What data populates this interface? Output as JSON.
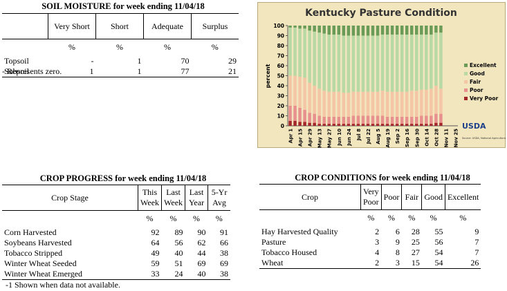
{
  "soil_moisture": {
    "title": "SOIL MOISTURE for week ending 11/04/18",
    "columns": [
      "Very Short",
      "Short",
      "Adequate",
      "Surplus"
    ],
    "units": [
      "%",
      "%",
      "%",
      "%"
    ],
    "rows": [
      {
        "label": "Topsoil",
        "values": [
          "-",
          1,
          70,
          29
        ]
      },
      {
        "label": "Subsoil",
        "values": [
          1,
          1,
          77,
          21
        ]
      }
    ],
    "note": "- Represents zero."
  },
  "crop_progress": {
    "title": "CROP PROGRESS for week ending 11/04/18",
    "stub_header": "Crop Stage",
    "columns": [
      "This Week",
      "Last Week",
      "Last Year",
      "5-Yr Avg"
    ],
    "units": [
      "%",
      "%",
      "%",
      "%"
    ],
    "rows": [
      {
        "label": "Corn Harvested",
        "values": [
          92,
          89,
          90,
          91
        ]
      },
      {
        "label": "Soybeans Harvested",
        "values": [
          64,
          56,
          62,
          66
        ]
      },
      {
        "label": "Tobacco Stripped",
        "values": [
          49,
          40,
          44,
          38
        ]
      },
      {
        "label": "Winter Wheat Seeded",
        "values": [
          59,
          51,
          69,
          69
        ]
      },
      {
        "label": "Winter Wheat Emerged",
        "values": [
          33,
          24,
          40,
          38
        ]
      }
    ],
    "note": "-1 Shown when data not available."
  },
  "crop_conditions": {
    "title": "CROP CONDITIONS for week ending 11/04/18",
    "stub_header": "Crop",
    "columns": [
      "Very Poor",
      "Poor",
      "Fair",
      "Good",
      "Excellent"
    ],
    "units": [
      "%",
      "%",
      "%",
      "%",
      "%"
    ],
    "rows": [
      {
        "label": "Hay Harvested Quality",
        "values": [
          2,
          6,
          28,
          55,
          9
        ]
      },
      {
        "label": "Pasture",
        "values": [
          3,
          9,
          25,
          56,
          7
        ]
      },
      {
        "label": "Tobacco Housed",
        "values": [
          4,
          8,
          27,
          54,
          7
        ]
      },
      {
        "label": "Wheat",
        "values": [
          2,
          3,
          15,
          54,
          26
        ]
      }
    ]
  },
  "chart_data": {
    "type": "stacked_bar",
    "title": "Kentucky Pasture Condition",
    "y_label": "percent",
    "logo": "USDA",
    "source": "Source: USDA, National Agricultural Statistics Service",
    "categories": [
      "Apr 1",
      null,
      "Apr 15",
      null,
      "Apr 29",
      null,
      "May 13",
      null,
      "May 27",
      null,
      "Jun 10",
      null,
      "Jun 24",
      null,
      "Jul 8",
      null,
      "Jul 22",
      null,
      "Aug 5",
      null,
      "Aug 19",
      null,
      "Sep 2",
      null,
      "Sep 16",
      null,
      "Sep 30",
      null,
      "Oct 14",
      null,
      "Oct 28",
      null,
      "Nov 11",
      null,
      "Nov 25"
    ],
    "series": [
      {
        "name": "Very Poor",
        "color": "#a3262a",
        "values": [
          5,
          5,
          4,
          4,
          3,
          3,
          2,
          2,
          2,
          2,
          2,
          2,
          2,
          2,
          2,
          2,
          2,
          2,
          2,
          2,
          2,
          2,
          2,
          2,
          2,
          2,
          2,
          2,
          2,
          2,
          3,
          3,
          null,
          null,
          null
        ]
      },
      {
        "name": "Poor",
        "color": "#e8908e",
        "values": [
          15,
          15,
          14,
          12,
          10,
          9,
          8,
          7,
          7,
          7,
          7,
          7,
          7,
          8,
          8,
          8,
          8,
          8,
          8,
          8,
          7,
          7,
          7,
          7,
          7,
          7,
          7,
          8,
          8,
          8,
          9,
          9,
          null,
          null,
          null
        ]
      },
      {
        "name": "Fair",
        "color": "#f5c6a5",
        "values": [
          30,
          30,
          31,
          32,
          30,
          28,
          27,
          26,
          25,
          25,
          25,
          24,
          24,
          24,
          24,
          24,
          24,
          24,
          24,
          25,
          25,
          25,
          25,
          25,
          25,
          26,
          26,
          26,
          26,
          27,
          28,
          25,
          null,
          null,
          null
        ]
      },
      {
        "name": "Good",
        "color": "#b8d8a4",
        "values": [
          48,
          48,
          48,
          49,
          52,
          54,
          56,
          57,
          57,
          57,
          57,
          57,
          57,
          56,
          56,
          56,
          56,
          56,
          56,
          56,
          57,
          57,
          57,
          57,
          57,
          56,
          56,
          55,
          55,
          54,
          53,
          56,
          null,
          null,
          null
        ]
      },
      {
        "name": "Excellent",
        "color": "#6a9c58",
        "values": [
          2,
          2,
          3,
          3,
          5,
          6,
          7,
          8,
          9,
          9,
          9,
          10,
          10,
          10,
          10,
          10,
          10,
          10,
          10,
          9,
          9,
          9,
          9,
          9,
          9,
          9,
          9,
          9,
          9,
          9,
          7,
          7,
          null,
          null,
          null
        ]
      }
    ],
    "ylim": [
      0,
      100
    ],
    "yticks": [
      0,
      10,
      20,
      30,
      40,
      50,
      60,
      70,
      80,
      90,
      100
    ]
  }
}
